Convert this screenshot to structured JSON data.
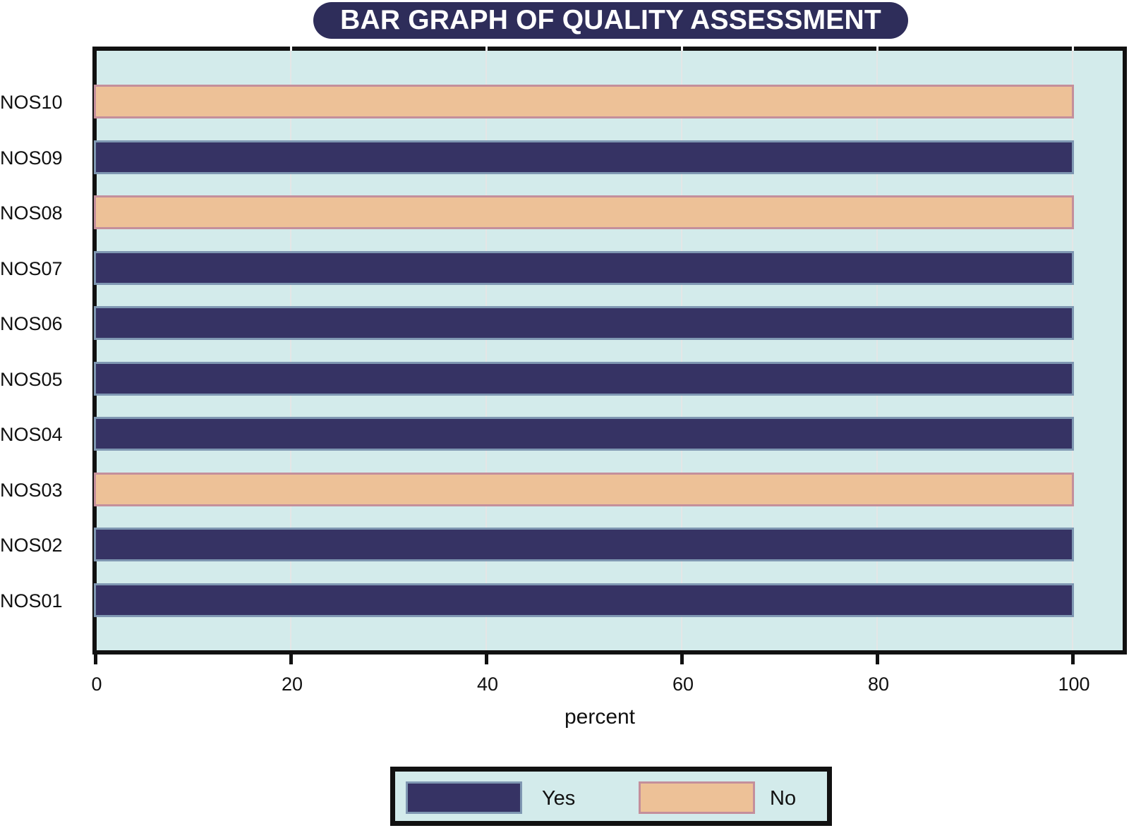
{
  "title": "BAR GRAPH OF QUALITY ASSESSMENT",
  "colors": {
    "yes": "#363364",
    "no": "#edc197",
    "panel": "#d3ebeb",
    "title_bg": "#2e2d5a"
  },
  "legend": {
    "items": [
      {
        "label": "Yes",
        "color": "#363364"
      },
      {
        "label": "No",
        "color": "#edc197"
      }
    ]
  },
  "chart_data": {
    "type": "bar",
    "orientation": "horizontal",
    "title": "BAR GRAPH OF QUALITY ASSESSMENT",
    "xlabel": "percent",
    "ylabel": "",
    "xlim": [
      0,
      100
    ],
    "xticks": [
      "0",
      "20",
      "40",
      "60",
      "80",
      "100"
    ],
    "categories": [
      "NOS10",
      "NOS09",
      "NOS08",
      "NOS07",
      "NOS06",
      "NOS05",
      "NOS04",
      "NOS03",
      "NOS02",
      "NOS01"
    ],
    "series": [
      {
        "name": "Yes",
        "values": [
          0,
          100,
          0,
          100,
          100,
          100,
          100,
          0,
          100,
          100
        ]
      },
      {
        "name": "No",
        "values": [
          100,
          0,
          100,
          0,
          0,
          0,
          0,
          100,
          0,
          0
        ]
      }
    ],
    "bar_answers": [
      "No",
      "Yes",
      "No",
      "Yes",
      "Yes",
      "Yes",
      "Yes",
      "No",
      "Yes",
      "Yes"
    ],
    "grid": true,
    "legend_position": "bottom"
  }
}
